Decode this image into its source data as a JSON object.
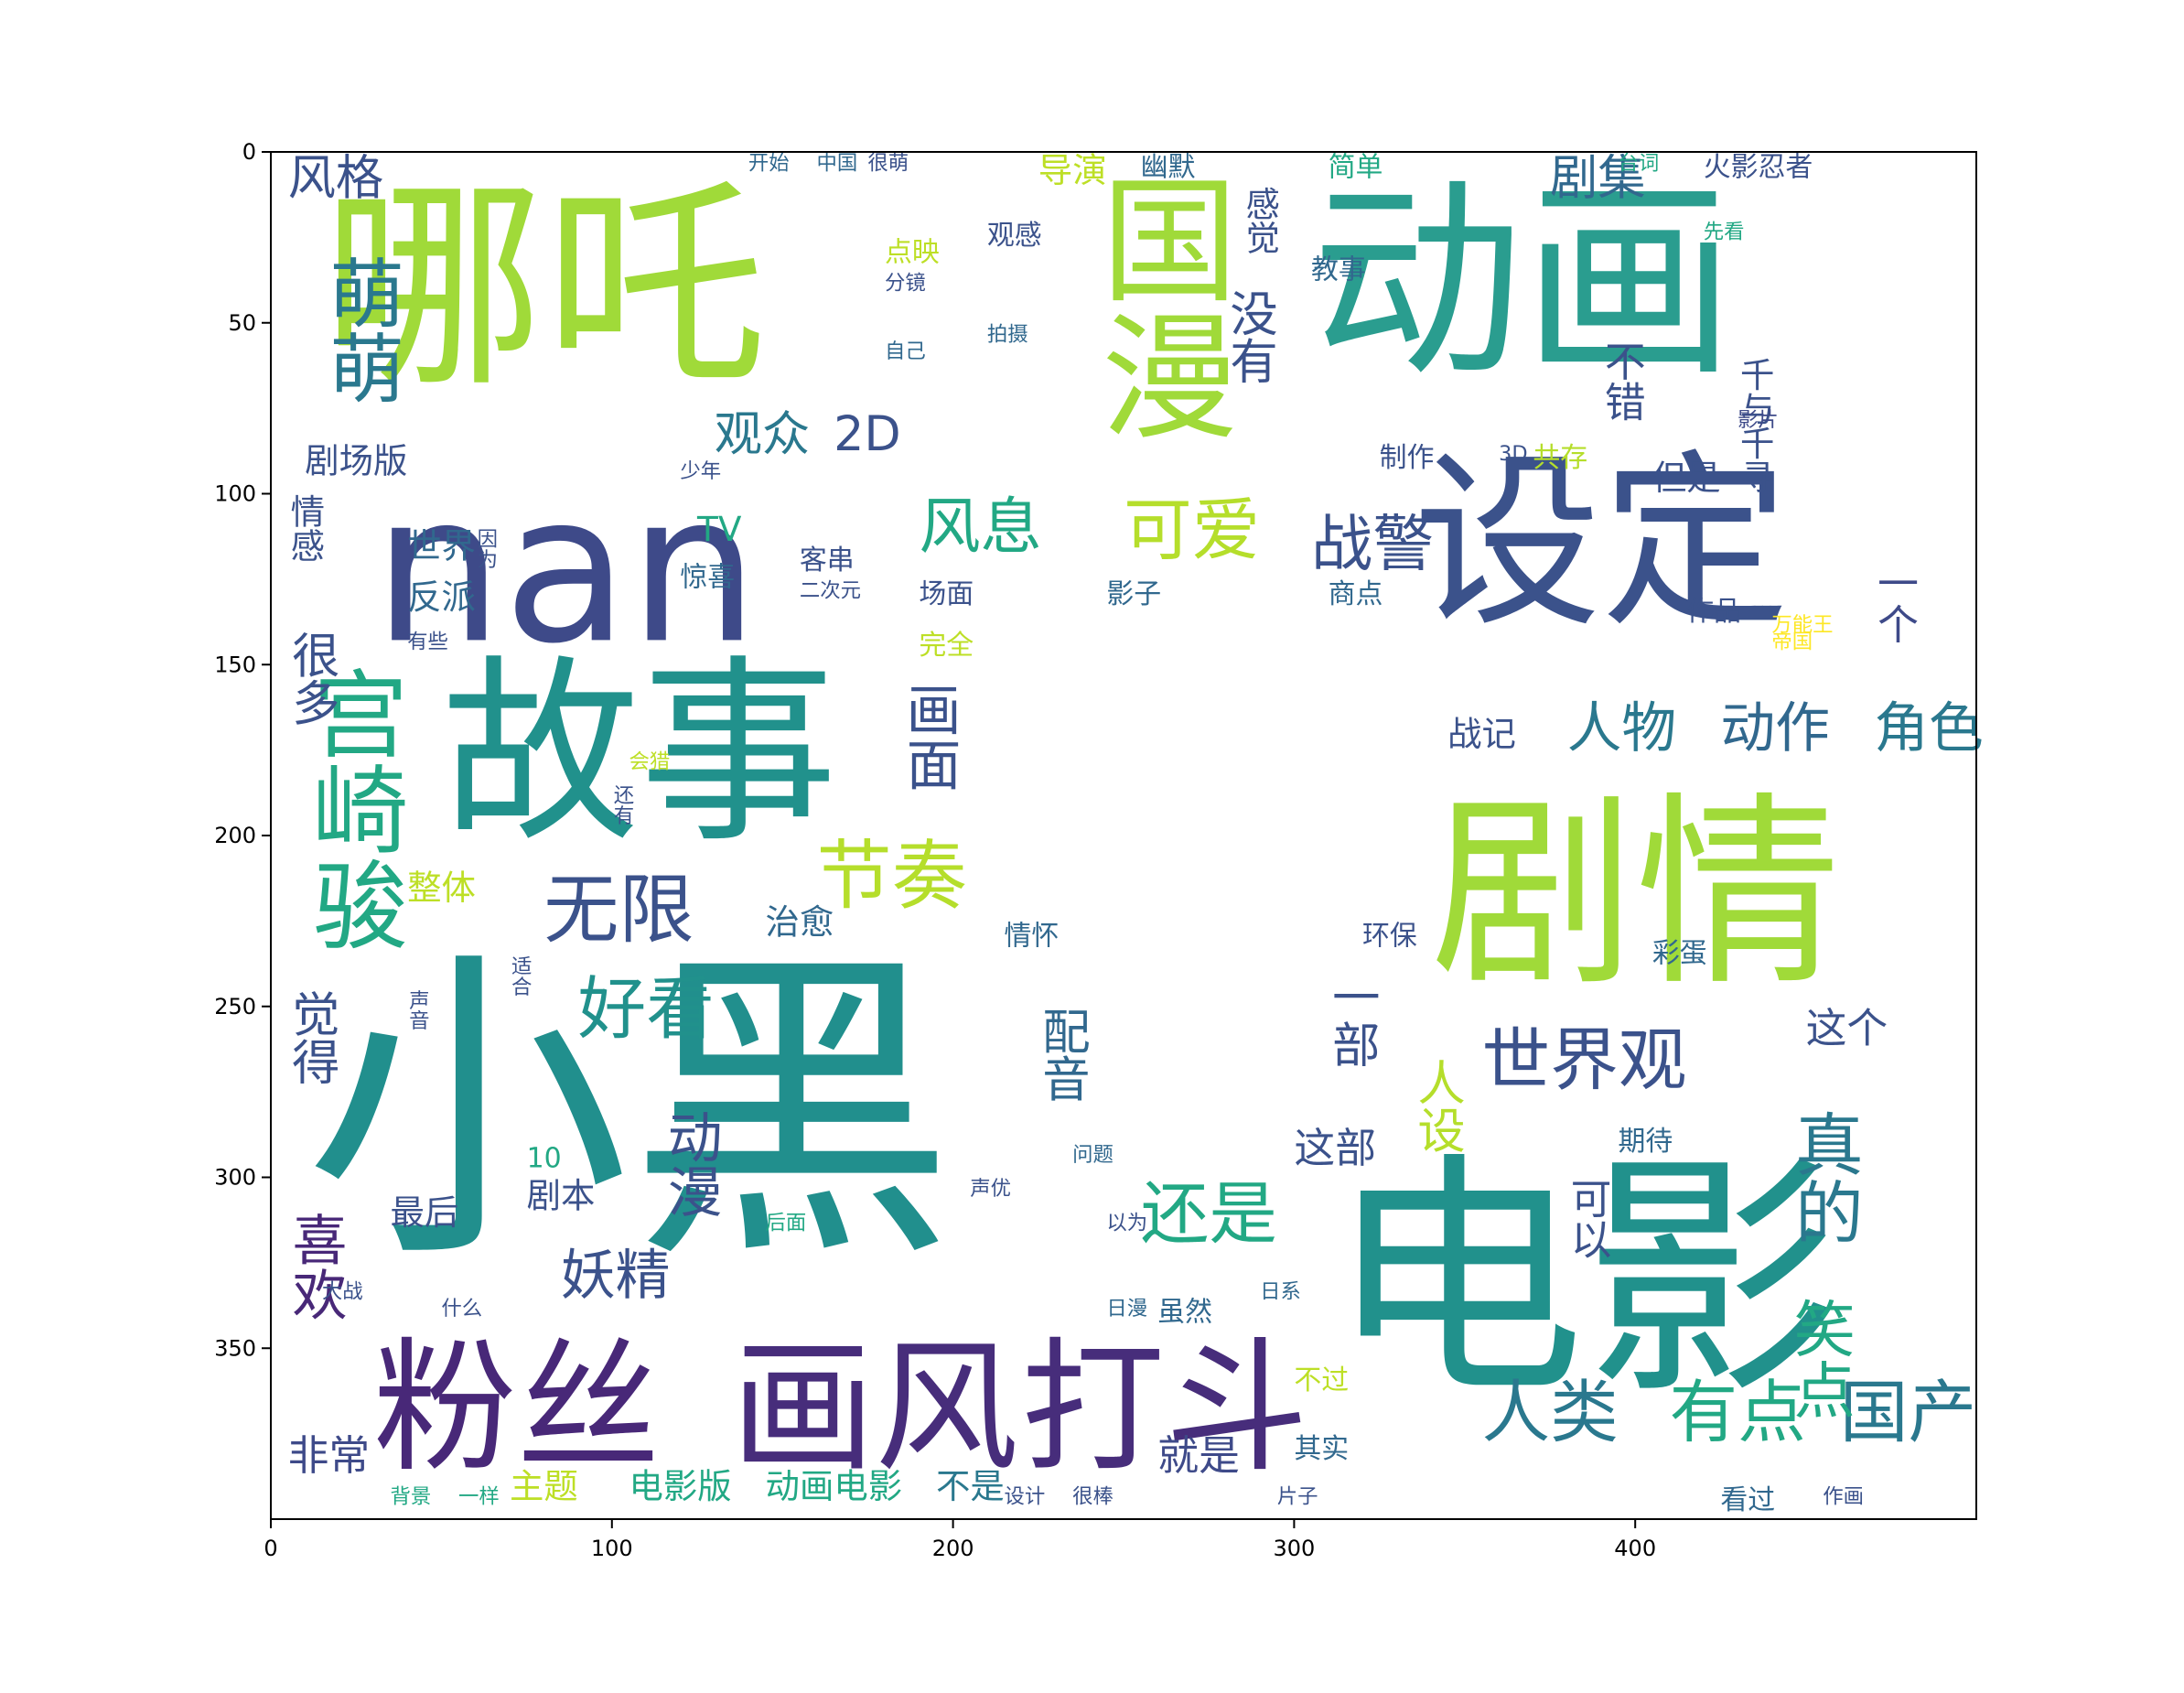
{
  "chart_data": {
    "type": "wordcloud",
    "title": "",
    "xlabel": "",
    "ylabel": "",
    "xlim": [
      0,
      500
    ],
    "ylim": [
      400,
      0
    ],
    "x_ticks": [
      0,
      100,
      200,
      300,
      400
    ],
    "y_ticks": [
      0,
      50,
      100,
      150,
      200,
      250,
      300,
      350
    ],
    "x_tick_labels": [
      "0",
      "100",
      "200",
      "300",
      "400"
    ],
    "y_tick_labels": [
      "0",
      "50",
      "100",
      "150",
      "200",
      "250",
      "300",
      "350"
    ],
    "colormap": "viridis",
    "mask": "background with a blank rectangular area in the centre",
    "words": [
      {
        "text": "哪吒",
        "x": 15,
        "y": 5,
        "size": 65,
        "vertical": false,
        "color": "#a0da39"
      },
      {
        "text": "动画",
        "x": 305,
        "y": 5,
        "size": 62,
        "vertical": false,
        "color": "#2a9d8f"
      },
      {
        "text": "nan",
        "x": 30,
        "y": 90,
        "size": 60,
        "vertical": false,
        "color": "#3e4a89"
      },
      {
        "text": "故事",
        "x": 50,
        "y": 145,
        "size": 58,
        "vertical": false,
        "color": "#21918c"
      },
      {
        "text": "设定",
        "x": 335,
        "y": 85,
        "size": 55,
        "vertical": false,
        "color": "#3b528b"
      },
      {
        "text": "剧情",
        "x": 340,
        "y": 185,
        "size": 60,
        "vertical": false,
        "color": "#a0da39"
      },
      {
        "text": "小黑",
        "x": 10,
        "y": 230,
        "size": 95,
        "vertical": false,
        "color": "#218f8d"
      },
      {
        "text": "电影",
        "x": 310,
        "y": 290,
        "size": 75,
        "vertical": false,
        "color": "#21918c"
      },
      {
        "text": "国漫",
        "x": 240,
        "y": 5,
        "size": 40,
        "vertical": true,
        "color": "#a0da39"
      },
      {
        "text": "粉丝",
        "x": 30,
        "y": 345,
        "size": 42,
        "vertical": false,
        "color": "#482878"
      },
      {
        "text": "画风",
        "x": 135,
        "y": 345,
        "size": 42,
        "vertical": false,
        "color": "#472d7b"
      },
      {
        "text": "打斗",
        "x": 220,
        "y": 345,
        "size": 42,
        "vertical": false,
        "color": "#472d7b"
      },
      {
        "text": "宫崎骏",
        "x": 10,
        "y": 150,
        "size": 28,
        "vertical": true,
        "color": "#22a884"
      },
      {
        "text": "萌萌",
        "x": 15,
        "y": 30,
        "size": 22,
        "vertical": true,
        "color": "#2a788e"
      },
      {
        "text": "风格",
        "x": 5,
        "y": 0,
        "size": 14,
        "vertical": false,
        "color": "#3b528b"
      },
      {
        "text": "节奏",
        "x": 160,
        "y": 200,
        "size": 22,
        "vertical": false,
        "color": "#b5de2b"
      },
      {
        "text": "无限",
        "x": 80,
        "y": 210,
        "size": 22,
        "vertical": false,
        "color": "#3b528b"
      },
      {
        "text": "好看",
        "x": 90,
        "y": 240,
        "size": 20,
        "vertical": false,
        "color": "#21918c"
      },
      {
        "text": "世界观",
        "x": 355,
        "y": 255,
        "size": 20,
        "vertical": false,
        "color": "#3b528b"
      },
      {
        "text": "可爱",
        "x": 250,
        "y": 100,
        "size": 20,
        "vertical": false,
        "color": "#b5de2b"
      },
      {
        "text": "战警",
        "x": 305,
        "y": 105,
        "size": 18,
        "vertical": false,
        "color": "#3b528b"
      },
      {
        "text": "风息",
        "x": 190,
        "y": 100,
        "size": 18,
        "vertical": false,
        "color": "#22a884"
      },
      {
        "text": "人物",
        "x": 380,
        "y": 160,
        "size": 16,
        "vertical": false,
        "color": "#2a788e"
      },
      {
        "text": "动作",
        "x": 425,
        "y": 160,
        "size": 16,
        "vertical": false,
        "color": "#31688e"
      },
      {
        "text": "角色",
        "x": 470,
        "y": 160,
        "size": 16,
        "vertical": false,
        "color": "#2a788e"
      },
      {
        "text": "还是",
        "x": 255,
        "y": 300,
        "size": 20,
        "vertical": false,
        "color": "#22a884"
      },
      {
        "text": "人类",
        "x": 355,
        "y": 358,
        "size": 20,
        "vertical": false,
        "color": "#2a788e"
      },
      {
        "text": "有点",
        "x": 410,
        "y": 358,
        "size": 20,
        "vertical": false,
        "color": "#22a884"
      },
      {
        "text": "国产",
        "x": 460,
        "y": 358,
        "size": 20,
        "vertical": false,
        "color": "#2a788e"
      },
      {
        "text": "喜欢",
        "x": 5,
        "y": 310,
        "size": 16,
        "vertical": true,
        "color": "#482878"
      },
      {
        "text": "非常",
        "x": 5,
        "y": 375,
        "size": 12,
        "vertical": false,
        "color": "#3e4a89"
      },
      {
        "text": "画面",
        "x": 185,
        "y": 155,
        "size": 16,
        "vertical": true,
        "color": "#3b528b"
      },
      {
        "text": "配音",
        "x": 225,
        "y": 250,
        "size": 14,
        "vertical": true,
        "color": "#31688e"
      },
      {
        "text": "动漫",
        "x": 115,
        "y": 280,
        "size": 16,
        "vertical": true,
        "color": "#3b528b"
      },
      {
        "text": "妖精",
        "x": 85,
        "y": 320,
        "size": 16,
        "vertical": false,
        "color": "#3b528b"
      },
      {
        "text": "剧集",
        "x": 375,
        "y": 0,
        "size": 14,
        "vertical": false,
        "color": "#31688e"
      },
      {
        "text": "2D",
        "x": 165,
        "y": 75,
        "size": 14,
        "vertical": false,
        "color": "#3b528b"
      },
      {
        "text": "观众",
        "x": 130,
        "y": 75,
        "size": 14,
        "vertical": false,
        "color": "#2a788e"
      },
      {
        "text": "导演",
        "x": 225,
        "y": 0,
        "size": 10,
        "vertical": false,
        "color": "#bddf26"
      },
      {
        "text": "剧场版",
        "x": 10,
        "y": 85,
        "size": 10,
        "vertical": false,
        "color": "#3b528b"
      },
      {
        "text": "就是",
        "x": 260,
        "y": 375,
        "size": 12,
        "vertical": false,
        "color": "#3e4a89"
      },
      {
        "text": "电影版",
        "x": 105,
        "y": 385,
        "size": 10,
        "vertical": false,
        "color": "#22a884"
      },
      {
        "text": "动画电影",
        "x": 145,
        "y": 385,
        "size": 10,
        "vertical": false,
        "color": "#22a884"
      },
      {
        "text": "不是",
        "x": 195,
        "y": 385,
        "size": 10,
        "vertical": false,
        "color": "#2a788e"
      },
      {
        "text": "主题",
        "x": 70,
        "y": 385,
        "size": 10,
        "vertical": false,
        "color": "#bddf26"
      },
      {
        "text": "万能王",
        "x": 440,
        "y": 135,
        "size": 6,
        "vertical": false,
        "color": "#fde725"
      },
      {
        "text": "火影忍者",
        "x": 420,
        "y": 0,
        "size": 8,
        "vertical": false,
        "color": "#3b528b"
      },
      {
        "text": "台词",
        "x": 395,
        "y": 0,
        "size": 6,
        "vertical": false,
        "color": "#22a884"
      },
      {
        "text": "简单",
        "x": 310,
        "y": 0,
        "size": 8,
        "vertical": false,
        "color": "#22a884"
      },
      {
        "text": "幽默",
        "x": 255,
        "y": 0,
        "size": 8,
        "vertical": false,
        "color": "#31688e"
      },
      {
        "text": "很萌",
        "x": 175,
        "y": 0,
        "size": 6,
        "vertical": false,
        "color": "#3b528b"
      },
      {
        "text": "开始",
        "x": 140,
        "y": 0,
        "size": 6,
        "vertical": false,
        "color": "#31688e"
      },
      {
        "text": "中国",
        "x": 160,
        "y": 0,
        "size": 6,
        "vertical": false,
        "color": "#31688e"
      },
      {
        "text": "不错",
        "x": 390,
        "y": 55,
        "size": 12,
        "vertical": true,
        "color": "#3b528b"
      },
      {
        "text": "千与千寻",
        "x": 430,
        "y": 60,
        "size": 10,
        "vertical": true,
        "color": "#3b528b"
      },
      {
        "text": "但是",
        "x": 405,
        "y": 90,
        "size": 10,
        "vertical": false,
        "color": "#3b528b"
      },
      {
        "text": "共存",
        "x": 370,
        "y": 85,
        "size": 8,
        "vertical": false,
        "color": "#b5de2b"
      },
      {
        "text": "制作",
        "x": 325,
        "y": 85,
        "size": 8,
        "vertical": false,
        "color": "#3b528b"
      },
      {
        "text": "3D",
        "x": 360,
        "y": 85,
        "size": 6,
        "vertical": false,
        "color": "#3b528b"
      },
      {
        "text": "影片",
        "x": 430,
        "y": 75,
        "size": 6,
        "vertical": false,
        "color": "#3e4a89"
      },
      {
        "text": "作品",
        "x": 415,
        "y": 130,
        "size": 8,
        "vertical": false,
        "color": "#3b528b"
      },
      {
        "text": "一个",
        "x": 470,
        "y": 120,
        "size": 12,
        "vertical": true,
        "color": "#3e4a89"
      },
      {
        "text": "商点",
        "x": 310,
        "y": 125,
        "size": 8,
        "vertical": false,
        "color": "#31688e"
      },
      {
        "text": "影子",
        "x": 245,
        "y": 125,
        "size": 8,
        "vertical": false,
        "color": "#31688e"
      },
      {
        "text": "TV",
        "x": 125,
        "y": 105,
        "size": 10,
        "vertical": false,
        "color": "#22a884"
      },
      {
        "text": "客串",
        "x": 155,
        "y": 115,
        "size": 8,
        "vertical": false,
        "color": "#3b528b"
      },
      {
        "text": "惊喜",
        "x": 120,
        "y": 120,
        "size": 8,
        "vertical": false,
        "color": "#31688e"
      },
      {
        "text": "场面",
        "x": 190,
        "y": 125,
        "size": 8,
        "vertical": false,
        "color": "#3b528b"
      },
      {
        "text": "完全",
        "x": 190,
        "y": 140,
        "size": 8,
        "vertical": false,
        "color": "#bddf26"
      },
      {
        "text": "世界",
        "x": 40,
        "y": 110,
        "size": 10,
        "vertical": false,
        "color": "#31688e"
      },
      {
        "text": "反派",
        "x": 40,
        "y": 125,
        "size": 10,
        "vertical": false,
        "color": "#31688e"
      },
      {
        "text": "很多",
        "x": 5,
        "y": 140,
        "size": 14,
        "vertical": true,
        "color": "#3b528b"
      },
      {
        "text": "情感",
        "x": 5,
        "y": 100,
        "size": 10,
        "vertical": true,
        "color": "#3b528b"
      },
      {
        "text": "整体",
        "x": 40,
        "y": 210,
        "size": 10,
        "vertical": false,
        "color": "#bddf26"
      },
      {
        "text": "觉得",
        "x": 5,
        "y": 245,
        "size": 14,
        "vertical": true,
        "color": "#3b528b"
      },
      {
        "text": "最后",
        "x": 35,
        "y": 305,
        "size": 10,
        "vertical": false,
        "color": "#3b528b"
      },
      {
        "text": "剧本",
        "x": 75,
        "y": 300,
        "size": 10,
        "vertical": false,
        "color": "#3b528b"
      },
      {
        "text": "这部",
        "x": 300,
        "y": 285,
        "size": 12,
        "vertical": false,
        "color": "#3b528b"
      },
      {
        "text": "人设",
        "x": 335,
        "y": 265,
        "size": 14,
        "vertical": true,
        "color": "#b5de2b"
      },
      {
        "text": "一部",
        "x": 310,
        "y": 240,
        "size": 14,
        "vertical": true,
        "color": "#3b528b"
      },
      {
        "text": "可以",
        "x": 380,
        "y": 300,
        "size": 12,
        "vertical": true,
        "color": "#3b528b"
      },
      {
        "text": "真的",
        "x": 445,
        "y": 280,
        "size": 20,
        "vertical": true,
        "color": "#2a788e"
      },
      {
        "text": "笑点",
        "x": 445,
        "y": 335,
        "size": 18,
        "vertical": true,
        "color": "#22a884"
      },
      {
        "text": "这个",
        "x": 450,
        "y": 250,
        "size": 12,
        "vertical": false,
        "color": "#3b528b"
      },
      {
        "text": "战记",
        "x": 345,
        "y": 165,
        "size": 10,
        "vertical": false,
        "color": "#3b528b"
      },
      {
        "text": "治愈",
        "x": 145,
        "y": 220,
        "size": 10,
        "vertical": false,
        "color": "#31688e"
      },
      {
        "text": "情怀",
        "x": 215,
        "y": 225,
        "size": 8,
        "vertical": false,
        "color": "#31688e"
      },
      {
        "text": "彩蛋",
        "x": 405,
        "y": 230,
        "size": 8,
        "vertical": false,
        "color": "#31688e"
      },
      {
        "text": "环保",
        "x": 320,
        "y": 225,
        "size": 8,
        "vertical": false,
        "color": "#3b528b"
      },
      {
        "text": "虽然",
        "x": 260,
        "y": 335,
        "size": 8,
        "vertical": false,
        "color": "#31688e"
      },
      {
        "text": "其实",
        "x": 300,
        "y": 375,
        "size": 8,
        "vertical": false,
        "color": "#31688e"
      },
      {
        "text": "不过",
        "x": 300,
        "y": 355,
        "size": 8,
        "vertical": false,
        "color": "#bddf26"
      },
      {
        "text": "片子",
        "x": 295,
        "y": 390,
        "size": 6,
        "vertical": false,
        "color": "#3b528b"
      },
      {
        "text": "作画",
        "x": 455,
        "y": 390,
        "size": 6,
        "vertical": false,
        "color": "#3b528b"
      },
      {
        "text": "看过",
        "x": 425,
        "y": 390,
        "size": 8,
        "vertical": false,
        "color": "#31688e"
      },
      {
        "text": "设计",
        "x": 215,
        "y": 390,
        "size": 6,
        "vertical": false,
        "color": "#3b528b"
      },
      {
        "text": "很棒",
        "x": 235,
        "y": 390,
        "size": 6,
        "vertical": false,
        "color": "#3b528b"
      },
      {
        "text": "背景",
        "x": 35,
        "y": 390,
        "size": 6,
        "vertical": false,
        "color": "#22a884"
      },
      {
        "text": "一样",
        "x": 55,
        "y": 390,
        "size": 6,
        "vertical": false,
        "color": "#22a884"
      },
      {
        "text": "10",
        "x": 75,
        "y": 290,
        "size": 8,
        "vertical": false,
        "color": "#22a884"
      },
      {
        "text": "观感",
        "x": 210,
        "y": 20,
        "size": 8,
        "vertical": false,
        "color": "#3b528b"
      },
      {
        "text": "感觉",
        "x": 285,
        "y": 10,
        "size": 10,
        "vertical": true,
        "color": "#3b528b"
      },
      {
        "text": "没有",
        "x": 280,
        "y": 40,
        "size": 14,
        "vertical": true,
        "color": "#3b528b"
      },
      {
        "text": "教事",
        "x": 305,
        "y": 30,
        "size": 8,
        "vertical": false,
        "color": "#31688e"
      },
      {
        "text": "点映",
        "x": 180,
        "y": 25,
        "size": 8,
        "vertical": false,
        "color": "#bddf26"
      },
      {
        "text": "分镜",
        "x": 180,
        "y": 35,
        "size": 6,
        "vertical": false,
        "color": "#3b528b"
      },
      {
        "text": "拍摄",
        "x": 210,
        "y": 50,
        "size": 6,
        "vertical": false,
        "color": "#31688e"
      },
      {
        "text": "问题",
        "x": 235,
        "y": 290,
        "size": 6,
        "vertical": false,
        "color": "#31688e"
      },
      {
        "text": "期待",
        "x": 395,
        "y": 285,
        "size": 8,
        "vertical": false,
        "color": "#31688e"
      },
      {
        "text": "声优",
        "x": 205,
        "y": 300,
        "size": 6,
        "vertical": false,
        "color": "#3b528b"
      },
      {
        "text": "后面",
        "x": 145,
        "y": 310,
        "size": 6,
        "vertical": false,
        "color": "#22a884"
      },
      {
        "text": "日漫",
        "x": 245,
        "y": 335,
        "size": 6,
        "vertical": false,
        "color": "#31688e"
      },
      {
        "text": "日系",
        "x": 290,
        "y": 330,
        "size": 6,
        "vertical": false,
        "color": "#31688e"
      },
      {
        "text": "二次元",
        "x": 155,
        "y": 125,
        "size": 6,
        "vertical": false,
        "color": "#3b528b"
      },
      {
        "text": "适合",
        "x": 70,
        "y": 235,
        "size": 6,
        "vertical": true,
        "color": "#3b528b"
      },
      {
        "text": "声音",
        "x": 40,
        "y": 245,
        "size": 6,
        "vertical": true,
        "color": "#3b528b"
      },
      {
        "text": "自己",
        "x": 180,
        "y": 55,
        "size": 6,
        "vertical": false,
        "color": "#31688e"
      },
      {
        "text": "少年",
        "x": 120,
        "y": 90,
        "size": 6,
        "vertical": false,
        "color": "#3b528b"
      },
      {
        "text": "因为",
        "x": 60,
        "y": 110,
        "size": 6,
        "vertical": true,
        "color": "#3b528b"
      },
      {
        "text": "有些",
        "x": 40,
        "y": 140,
        "size": 6,
        "vertical": false,
        "color": "#3b528b"
      },
      {
        "text": "会猎",
        "x": 105,
        "y": 175,
        "size": 6,
        "vertical": false,
        "color": "#bddf26"
      },
      {
        "text": "还有",
        "x": 100,
        "y": 185,
        "size": 6,
        "vertical": true,
        "color": "#3b528b"
      },
      {
        "text": "以为",
        "x": 245,
        "y": 310,
        "size": 6,
        "vertical": false,
        "color": "#3b528b"
      },
      {
        "text": "什么",
        "x": 50,
        "y": 335,
        "size": 6,
        "vertical": false,
        "color": "#3b528b"
      },
      {
        "text": "大战",
        "x": 15,
        "y": 330,
        "size": 6,
        "vertical": false,
        "color": "#3b528b"
      },
      {
        "text": "帝国",
        "x": 440,
        "y": 140,
        "size": 6,
        "vertical": false,
        "color": "#fde725"
      },
      {
        "text": "先看",
        "x": 420,
        "y": 20,
        "size": 6,
        "vertical": false,
        "color": "#22a884"
      }
    ]
  }
}
